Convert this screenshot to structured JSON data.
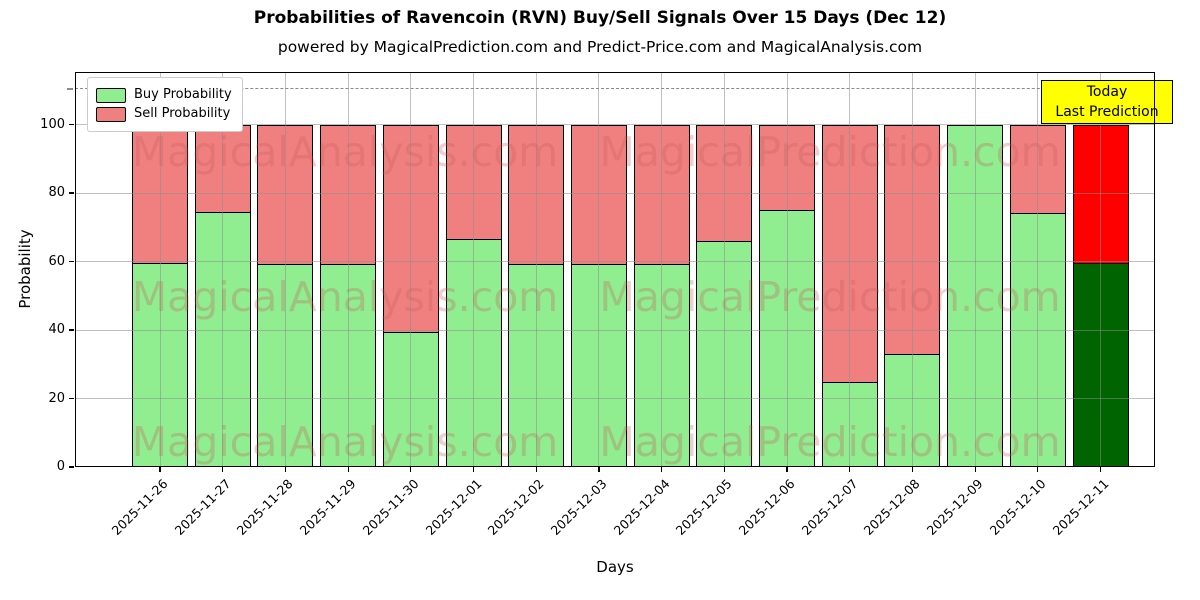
{
  "title": "Probabilities of Ravencoin (RVN) Buy/Sell Signals Over 15 Days (Dec 12)",
  "subtitle": "powered by MagicalPrediction.com and Predict-Price.com and MagicalAnalysis.com",
  "legend": {
    "items": [
      {
        "label": "Buy Probability",
        "color": "#90EE90"
      },
      {
        "label": "Sell Probability",
        "color": "#F08080"
      }
    ]
  },
  "annotation_box": {
    "lines": [
      "Today",
      "Last Prediction"
    ],
    "bg_color": "#FFFF00",
    "border_color": "#000000"
  },
  "watermarks": {
    "texts": [
      "MagicalAnalysis.com",
      "MagicalPrediction.com"
    ]
  },
  "axes": {
    "xlabel": "Days",
    "ylabel": "Probability",
    "yticks": [
      0,
      20,
      40,
      60,
      80,
      100
    ],
    "ylim": [
      0,
      115
    ],
    "dashed_guide_y": 110.5,
    "grid": true
  },
  "colors": {
    "buy": "#90EE90",
    "sell": "#F08080",
    "today_buy": "#006400",
    "today_sell": "#FF0000",
    "bar_edge": "#000000",
    "grid": "#8c8c8c",
    "dashed_guide": "#8a8a8a",
    "background": "#FFFFFF"
  },
  "chart_data": {
    "type": "bar",
    "stacked": true,
    "title": "Probabilities of Ravencoin (RVN) Buy/Sell Signals Over 15 Days (Dec 12)",
    "xlabel": "Days",
    "ylabel": "Probability",
    "ylim": [
      0,
      115
    ],
    "grid": true,
    "legend_position": "upper left",
    "categories": [
      "2025-11-26",
      "2025-11-27",
      "2025-11-28",
      "2025-11-29",
      "2025-11-30",
      "2025-12-01",
      "2025-12-02",
      "2025-12-03",
      "2025-12-04",
      "2025-12-05",
      "2025-12-06",
      "2025-12-07",
      "2025-12-08",
      "2025-12-09",
      "2025-12-10",
      "2025-12-11"
    ],
    "series": [
      {
        "name": "Buy Probability",
        "values": [
          59.5,
          74.4,
          59.3,
          59.3,
          39.3,
          66.7,
          59.3,
          59.3,
          59.3,
          66.0,
          75.0,
          24.8,
          33.1,
          100.0,
          74.3,
          59.5
        ]
      },
      {
        "name": "Sell Probability",
        "values": [
          40.5,
          25.6,
          40.7,
          40.7,
          60.7,
          33.3,
          40.7,
          40.7,
          40.7,
          34.0,
          25.0,
          75.2,
          66.9,
          0.0,
          25.7,
          40.5
        ]
      }
    ],
    "highlight_index": 15,
    "highlight_label": "Today / Last Prediction"
  }
}
